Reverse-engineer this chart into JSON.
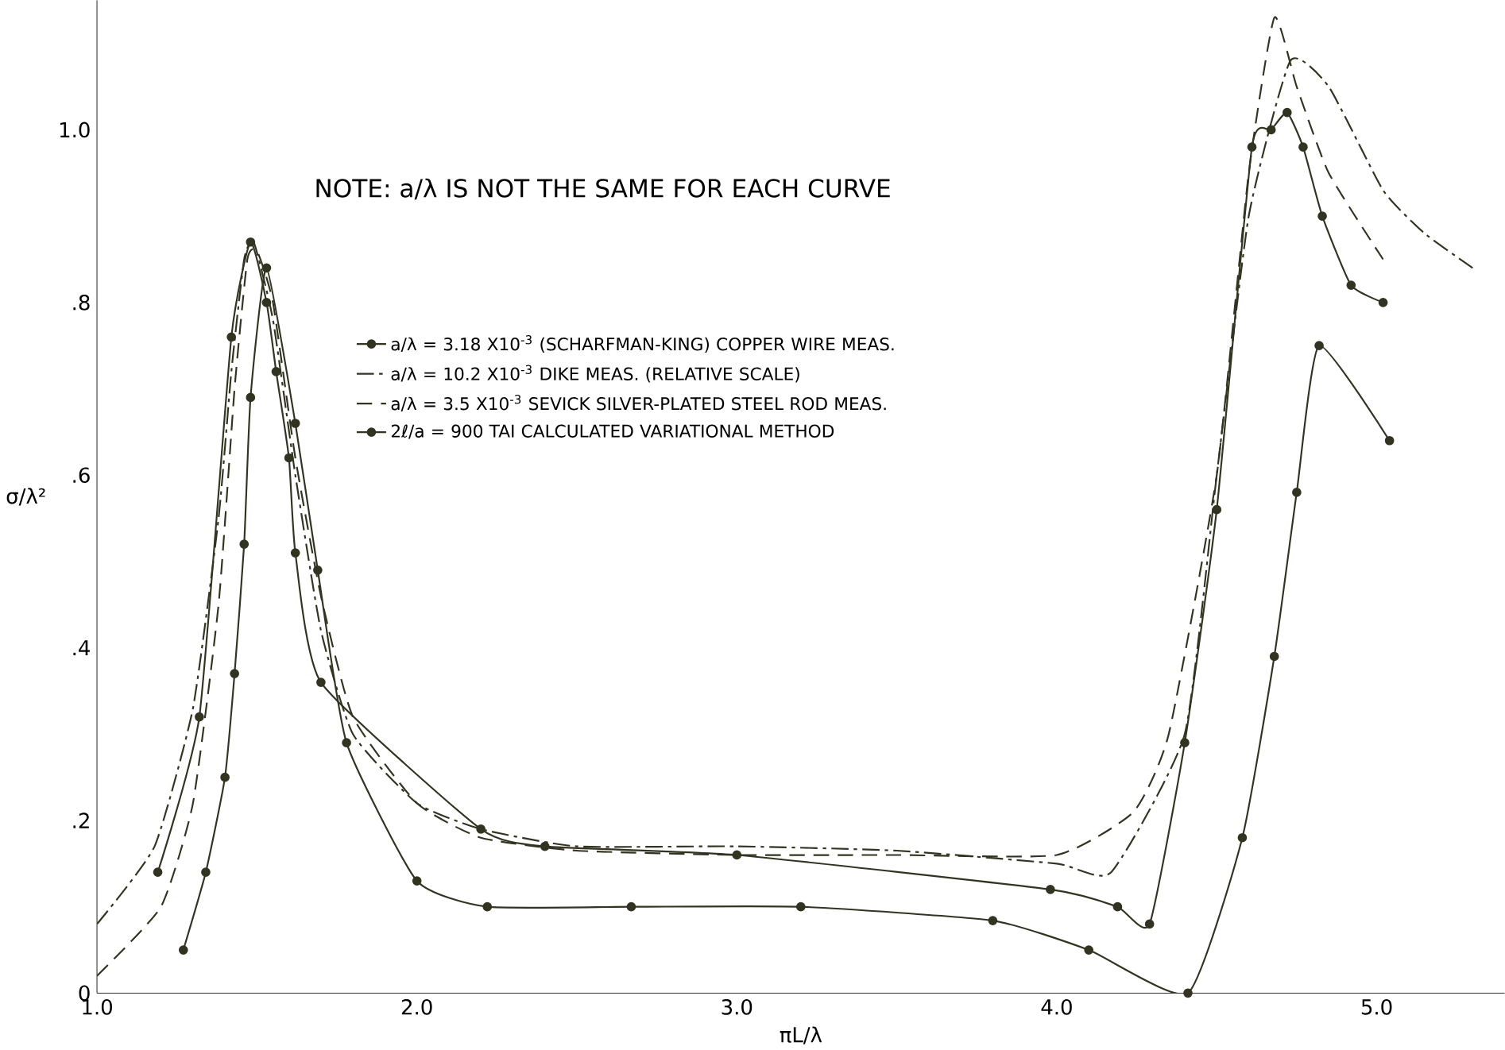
{
  "chart_data": {
    "type": "line",
    "xlabel": "πL/λ",
    "ylabel": "σ/λ²",
    "annotations": [
      "NOTE: a/λ IS NOT THE SAME FOR EACH CURVE"
    ],
    "xlim": [
      1.0,
      5.4
    ],
    "ylim": [
      0,
      1.15
    ],
    "xticks": [
      {
        "value": 1,
        "label": "1.0"
      },
      {
        "value": 2,
        "label": "2.0"
      },
      {
        "value": 3,
        "label": "3.0"
      },
      {
        "value": 4,
        "label": "4.0"
      },
      {
        "value": 5,
        "label": "5.0"
      }
    ],
    "yticks": [
      {
        "value": 0,
        "label": "0"
      },
      {
        "value": 0.2,
        "label": ".2"
      },
      {
        "value": 0.4,
        "label": ".4"
      },
      {
        "value": 0.6,
        "label": ".6"
      },
      {
        "value": 0.8,
        "label": ".8"
      },
      {
        "value": 1.0,
        "label": "1.0"
      }
    ],
    "grid": false,
    "legend": "left",
    "series": [
      {
        "name": "a/λ = 3.18 X10$^{-3}$ (SCHARFMAN-KING) COPPER WIRE MEAS.",
        "color": "#333322",
        "line_style": "solid",
        "marker": "circle",
        "x": [
          1.19,
          1.32,
          1.42,
          1.48,
          1.53,
          1.56,
          1.6,
          1.62,
          1.7,
          2.2,
          2.4,
          3.0,
          3.98,
          4.19,
          4.29,
          4.4,
          4.5,
          4.61,
          4.67,
          4.72,
          4.77,
          4.83,
          4.92,
          5.02
        ],
        "values": [
          0.14,
          0.32,
          0.76,
          0.87,
          0.8,
          0.72,
          0.62,
          0.51,
          0.36,
          0.19,
          0.17,
          0.16,
          0.12,
          0.1,
          0.08,
          0.29,
          0.56,
          0.98,
          1.0,
          1.02,
          0.98,
          0.9,
          0.82,
          0.8
        ]
      },
      {
        "name": "a/λ = 10.2 X10$^{-3}$ DIKE MEAS. (RELATIVE SCALE)",
        "color": "#333322",
        "line_style": "dashdot",
        "marker": "none",
        "x": [
          1.0,
          1.18,
          1.3,
          1.38,
          1.42,
          1.46,
          1.49,
          1.55,
          1.62,
          1.7,
          1.8,
          2.0,
          2.2,
          2.5,
          3.0,
          3.5,
          4.0,
          4.17,
          4.4,
          4.5,
          4.6,
          4.73,
          4.85,
          5.02,
          5.15,
          5.3
        ],
        "values": [
          0.08,
          0.17,
          0.33,
          0.55,
          0.72,
          0.85,
          0.87,
          0.78,
          0.6,
          0.42,
          0.3,
          0.22,
          0.19,
          0.17,
          0.17,
          0.165,
          0.15,
          0.14,
          0.3,
          0.6,
          0.9,
          1.08,
          1.05,
          0.93,
          0.88,
          0.84
        ]
      },
      {
        "name": "a/λ = 3.5 X10$^{-3}$ SEVICK SILVER-PLATED STEEL ROD MEAS.",
        "color": "#333322",
        "line_style": "dashed",
        "marker": "none",
        "x": [
          1.0,
          1.2,
          1.3,
          1.38,
          1.43,
          1.47,
          1.5,
          1.55,
          1.62,
          1.7,
          1.8,
          2.0,
          2.2,
          2.5,
          3.0,
          3.5,
          4.0,
          4.24,
          4.35,
          4.5,
          4.6,
          4.68,
          4.75,
          4.85,
          5.02
        ],
        "values": [
          0.02,
          0.1,
          0.22,
          0.45,
          0.7,
          0.85,
          0.86,
          0.8,
          0.62,
          0.46,
          0.32,
          0.22,
          0.18,
          0.165,
          0.16,
          0.16,
          0.16,
          0.21,
          0.3,
          0.6,
          0.95,
          1.13,
          1.05,
          0.95,
          0.85
        ]
      },
      {
        "name": "2ℓ/a = 900 TAI CALCULATED VARIATIONAL METHOD",
        "color": "#333322",
        "line_style": "solid",
        "marker": "circle",
        "x": [
          1.27,
          1.34,
          1.4,
          1.43,
          1.46,
          1.48,
          1.53,
          1.62,
          1.69,
          1.78,
          2.0,
          2.22,
          2.67,
          3.2,
          3.8,
          4.1,
          4.41,
          4.58,
          4.68,
          4.75,
          4.82,
          5.04
        ],
        "values": [
          0.05,
          0.14,
          0.25,
          0.37,
          0.52,
          0.69,
          0.84,
          0.66,
          0.49,
          0.29,
          0.13,
          0.1,
          0.1,
          0.1,
          0.084,
          0.05,
          0.0,
          0.18,
          0.39,
          0.58,
          0.75,
          0.64
        ]
      }
    ]
  }
}
